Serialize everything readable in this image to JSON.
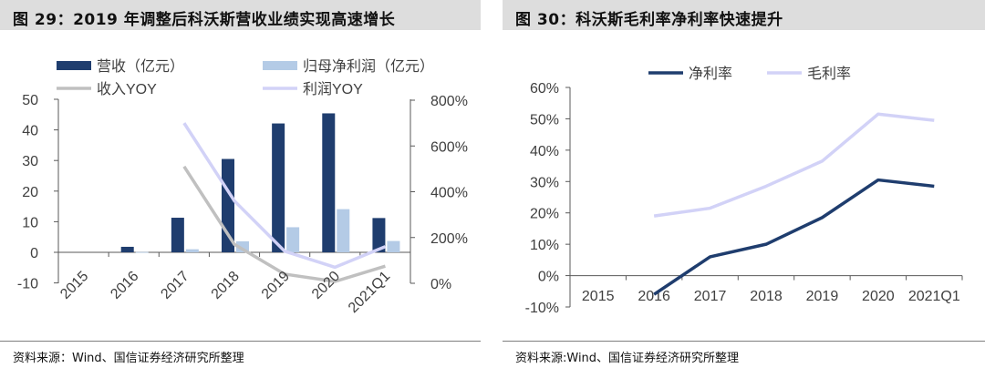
{
  "left": {
    "title": "图 29：2019 年调整后科沃斯营收业绩实现高速增长",
    "source": "资料来源：Wind、国信证券经济研究所整理"
  },
  "right": {
    "title": "图 30：科沃斯毛利率净利率快速提升",
    "source": "资料来源:Wind、国信证券经济研究所整理"
  },
  "colors": {
    "navy": "#1f3d6e",
    "lightblue": "#b4cbe6",
    "gray": "#c0c0c0",
    "lavender": "#d2d2f7",
    "axis": "#595959",
    "text": "#404040"
  },
  "chart_data": [
    {
      "type": "bar+line",
      "categories": [
        "2015",
        "2016",
        "2017",
        "2018",
        "2019",
        "2020",
        "2021Q1"
      ],
      "ylim": [
        -10,
        50
      ],
      "y_ticks": [
        -10,
        0,
        10,
        20,
        30,
        40,
        50
      ],
      "y2lim": [
        0,
        800
      ],
      "y2_ticks": [
        "0%",
        "200%",
        "400%",
        "600%",
        "800%"
      ],
      "series": [
        {
          "name": "营收（亿元）",
          "kind": "bar",
          "axis": "left",
          "color": "#1f3d6e",
          "values": [
            null,
            1.8,
            11.3,
            30.5,
            42.1,
            45.4,
            11.2
          ]
        },
        {
          "name": "归母净利润（亿元）",
          "kind": "bar",
          "axis": "left",
          "color": "#b4cbe6",
          "values": [
            null,
            0.1,
            1.0,
            3.6,
            8.2,
            14.1,
            3.7
          ]
        },
        {
          "name": "收入YOY",
          "kind": "line",
          "axis": "right",
          "color": "#c0c0c0",
          "values": [
            null,
            null,
            510,
            170,
            40,
            8,
            75
          ]
        },
        {
          "name": "利润YOY",
          "kind": "line",
          "axis": "right",
          "color": "#d2d2f7",
          "values": [
            null,
            null,
            700,
            360,
            140,
            70,
            160
          ]
        }
      ]
    },
    {
      "type": "line",
      "categories": [
        "2015",
        "2016",
        "2017",
        "2018",
        "2019",
        "2020",
        "2021Q1"
      ],
      "ylim": [
        -10,
        60
      ],
      "y_ticks": [
        "60%",
        "50%",
        "40%",
        "30%",
        "20%",
        "10%",
        "0%",
        "-10%"
      ],
      "series": [
        {
          "name": "净利率",
          "color": "#1f3d6e",
          "values": [
            null,
            -6,
            6,
            10,
            18.5,
            30.5,
            28.5
          ]
        },
        {
          "name": "毛利率",
          "color": "#d2d2f7",
          "values": [
            null,
            19,
            21.5,
            28.5,
            36.5,
            51.5,
            49.5
          ]
        }
      ]
    }
  ]
}
